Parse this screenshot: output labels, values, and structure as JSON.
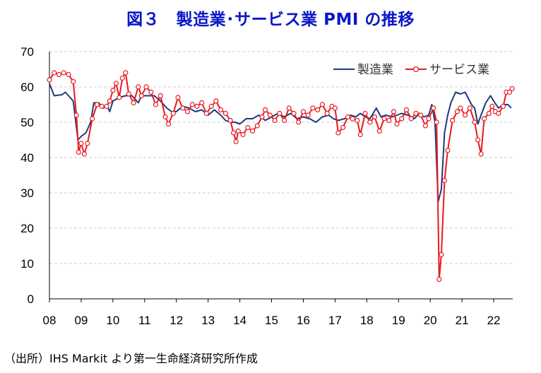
{
  "chart_data": {
    "type": "line",
    "title": "図３　製造業･サービス業 PMI の推移",
    "source": "（出所）IHS Markit より第一生命経済研究所作成",
    "ylim": [
      0,
      70
    ],
    "yticks": [
      0,
      10,
      20,
      30,
      40,
      50,
      60,
      70
    ],
    "xlim": [
      2008.0,
      2022.6
    ],
    "xticks": [
      {
        "label": "08",
        "x": 2008
      },
      {
        "label": "09",
        "x": 2009
      },
      {
        "label": "10",
        "x": 2010
      },
      {
        "label": "11",
        "x": 2011
      },
      {
        "label": "12",
        "x": 2012
      },
      {
        "label": "13",
        "x": 2013
      },
      {
        "label": "14",
        "x": 2014
      },
      {
        "label": "15",
        "x": 2015
      },
      {
        "label": "16",
        "x": 2016
      },
      {
        "label": "17",
        "x": 2017
      },
      {
        "label": "18",
        "x": 2018
      },
      {
        "label": "19",
        "x": 2019
      },
      {
        "label": "20",
        "x": 2020
      },
      {
        "label": "21",
        "x": 2021
      },
      {
        "label": "22",
        "x": 2022
      }
    ],
    "grid": "horizontal-dashed",
    "legend_position": "top-right",
    "series": [
      {
        "name": "製造業",
        "color": "#1f3a7a",
        "markers": false,
        "points": [
          [
            2008.0,
            61.0
          ],
          [
            2008.15,
            57.5
          ],
          [
            2008.4,
            57.8
          ],
          [
            2008.5,
            58.5
          ],
          [
            2008.6,
            57.5
          ],
          [
            2008.75,
            56.0
          ],
          [
            2008.9,
            45.0
          ],
          [
            2009.0,
            46.0
          ],
          [
            2009.15,
            47.0
          ],
          [
            2009.3,
            50.0
          ],
          [
            2009.4,
            55.5
          ],
          [
            2009.55,
            55.5
          ],
          [
            2009.7,
            54.0
          ],
          [
            2009.8,
            55.0
          ],
          [
            2009.9,
            53.0
          ],
          [
            2010.0,
            56.0
          ],
          [
            2010.2,
            57.0
          ],
          [
            2010.4,
            57.5
          ],
          [
            2010.6,
            57.5
          ],
          [
            2010.8,
            55.5
          ],
          [
            2010.9,
            57.5
          ],
          [
            2011.1,
            57.5
          ],
          [
            2011.3,
            57.5
          ],
          [
            2011.5,
            56.0
          ],
          [
            2011.7,
            54.0
          ],
          [
            2011.85,
            53.0
          ],
          [
            2012.0,
            53.0
          ],
          [
            2012.2,
            54.5
          ],
          [
            2012.4,
            54.0
          ],
          [
            2012.6,
            53.0
          ],
          [
            2012.8,
            53.5
          ],
          [
            2013.0,
            52.0
          ],
          [
            2013.2,
            53.5
          ],
          [
            2013.4,
            52.0
          ],
          [
            2013.55,
            50.5
          ],
          [
            2013.7,
            50.0
          ],
          [
            2013.85,
            50.0
          ],
          [
            2014.0,
            49.5
          ],
          [
            2014.2,
            51.0
          ],
          [
            2014.4,
            51.0
          ],
          [
            2014.6,
            52.0
          ],
          [
            2014.8,
            50.5
          ],
          [
            2015.0,
            51.5
          ],
          [
            2015.2,
            52.5
          ],
          [
            2015.4,
            51.5
          ],
          [
            2015.6,
            52.5
          ],
          [
            2015.8,
            51.0
          ],
          [
            2016.0,
            51.5
          ],
          [
            2016.2,
            51.0
          ],
          [
            2016.4,
            50.0
          ],
          [
            2016.6,
            51.5
          ],
          [
            2016.8,
            52.0
          ],
          [
            2016.95,
            51.0
          ],
          [
            2017.1,
            50.5
          ],
          [
            2017.3,
            51.0
          ],
          [
            2017.5,
            52.0
          ],
          [
            2017.65,
            51.5
          ],
          [
            2017.8,
            52.5
          ],
          [
            2017.95,
            51.5
          ],
          [
            2018.1,
            51.0
          ],
          [
            2018.3,
            54.0
          ],
          [
            2018.45,
            51.5
          ],
          [
            2018.6,
            52.0
          ],
          [
            2018.8,
            51.5
          ],
          [
            2018.95,
            52.0
          ],
          [
            2019.1,
            52.5
          ],
          [
            2019.3,
            52.0
          ],
          [
            2019.5,
            51.0
          ],
          [
            2019.65,
            52.5
          ],
          [
            2019.8,
            51.5
          ],
          [
            2019.95,
            52.0
          ],
          [
            2020.05,
            55.0
          ],
          [
            2020.15,
            50.0
          ],
          [
            2020.25,
            27.5
          ],
          [
            2020.35,
            31.0
          ],
          [
            2020.45,
            47.0
          ],
          [
            2020.55,
            52.0
          ],
          [
            2020.65,
            55.5
          ],
          [
            2020.8,
            58.5
          ],
          [
            2020.95,
            58.0
          ],
          [
            2021.1,
            58.5
          ],
          [
            2021.3,
            55.0
          ],
          [
            2021.4,
            54.0
          ],
          [
            2021.5,
            49.5
          ],
          [
            2021.6,
            52.0
          ],
          [
            2021.75,
            55.5
          ],
          [
            2021.9,
            57.5
          ],
          [
            2022.0,
            56.0
          ],
          [
            2022.15,
            54.0
          ],
          [
            2022.3,
            55.0
          ],
          [
            2022.45,
            55.0
          ],
          [
            2022.55,
            54.0
          ]
        ]
      },
      {
        "name": "サービス業",
        "color": "#e8191f",
        "markers": true,
        "points": [
          [
            2008.0,
            62.0
          ],
          [
            2008.15,
            64.0
          ],
          [
            2008.3,
            63.5
          ],
          [
            2008.45,
            64.0
          ],
          [
            2008.6,
            63.5
          ],
          [
            2008.75,
            61.5
          ],
          [
            2008.85,
            52.0
          ],
          [
            2008.92,
            41.5
          ],
          [
            2009.0,
            44.0
          ],
          [
            2009.1,
            41.0
          ],
          [
            2009.2,
            44.0
          ],
          [
            2009.35,
            51.0
          ],
          [
            2009.5,
            55.0
          ],
          [
            2009.65,
            54.5
          ],
          [
            2009.8,
            54.5
          ],
          [
            2009.9,
            56.0
          ],
          [
            2010.0,
            59.0
          ],
          [
            2010.1,
            61.0
          ],
          [
            2010.2,
            57.0
          ],
          [
            2010.3,
            62.5
          ],
          [
            2010.4,
            64.0
          ],
          [
            2010.5,
            58.0
          ],
          [
            2010.65,
            55.5
          ],
          [
            2010.8,
            60.0
          ],
          [
            2010.9,
            57.5
          ],
          [
            2011.05,
            60.0
          ],
          [
            2011.2,
            58.5
          ],
          [
            2011.35,
            55.0
          ],
          [
            2011.5,
            57.5
          ],
          [
            2011.65,
            51.5
          ],
          [
            2011.75,
            49.5
          ],
          [
            2011.9,
            52.5
          ],
          [
            2012.05,
            57.0
          ],
          [
            2012.2,
            54.0
          ],
          [
            2012.35,
            53.0
          ],
          [
            2012.5,
            55.0
          ],
          [
            2012.65,
            54.5
          ],
          [
            2012.8,
            55.5
          ],
          [
            2012.95,
            52.5
          ],
          [
            2013.1,
            54.5
          ],
          [
            2013.25,
            56.0
          ],
          [
            2013.4,
            53.5
          ],
          [
            2013.55,
            52.5
          ],
          [
            2013.7,
            50.5
          ],
          [
            2013.8,
            47.0
          ],
          [
            2013.88,
            44.5
          ],
          [
            2013.95,
            47.5
          ],
          [
            2014.1,
            46.5
          ],
          [
            2014.25,
            48.5
          ],
          [
            2014.4,
            47.5
          ],
          [
            2014.55,
            49.0
          ],
          [
            2014.7,
            51.5
          ],
          [
            2014.8,
            53.5
          ],
          [
            2014.95,
            52.0
          ],
          [
            2015.1,
            50.5
          ],
          [
            2015.25,
            52.5
          ],
          [
            2015.4,
            50.5
          ],
          [
            2015.55,
            54.0
          ],
          [
            2015.7,
            52.5
          ],
          [
            2015.85,
            50.0
          ],
          [
            2016.0,
            53.0
          ],
          [
            2016.15,
            52.0
          ],
          [
            2016.3,
            54.0
          ],
          [
            2016.45,
            53.5
          ],
          [
            2016.6,
            55.0
          ],
          [
            2016.75,
            52.5
          ],
          [
            2016.9,
            54.5
          ],
          [
            2017.0,
            54.0
          ],
          [
            2017.1,
            47.0
          ],
          [
            2017.25,
            48.5
          ],
          [
            2017.4,
            51.5
          ],
          [
            2017.55,
            51.0
          ],
          [
            2017.7,
            50.5
          ],
          [
            2017.8,
            46.5
          ],
          [
            2017.95,
            52.5
          ],
          [
            2018.1,
            50.0
          ],
          [
            2018.25,
            51.5
          ],
          [
            2018.4,
            47.5
          ],
          [
            2018.55,
            51.0
          ],
          [
            2018.7,
            50.5
          ],
          [
            2018.85,
            53.0
          ],
          [
            2018.95,
            49.5
          ],
          [
            2019.1,
            51.0
          ],
          [
            2019.25,
            53.5
          ],
          [
            2019.4,
            51.0
          ],
          [
            2019.55,
            52.5
          ],
          [
            2019.7,
            52.0
          ],
          [
            2019.85,
            49.0
          ],
          [
            2019.95,
            51.0
          ],
          [
            2020.1,
            54.0
          ],
          [
            2020.2,
            50.0
          ],
          [
            2020.28,
            5.5
          ],
          [
            2020.35,
            12.5
          ],
          [
            2020.45,
            33.5
          ],
          [
            2020.55,
            42.0
          ],
          [
            2020.7,
            50.5
          ],
          [
            2020.85,
            53.0
          ],
          [
            2020.95,
            54.0
          ],
          [
            2021.1,
            52.0
          ],
          [
            2021.25,
            54.0
          ],
          [
            2021.4,
            50.0
          ],
          [
            2021.5,
            45.0
          ],
          [
            2021.6,
            41.0
          ],
          [
            2021.7,
            51.0
          ],
          [
            2021.85,
            52.5
          ],
          [
            2021.95,
            54.5
          ],
          [
            2022.05,
            53.0
          ],
          [
            2022.15,
            52.5
          ],
          [
            2022.3,
            54.5
          ],
          [
            2022.4,
            58.5
          ],
          [
            2022.5,
            58.5
          ],
          [
            2022.58,
            59.5
          ]
        ]
      }
    ]
  }
}
